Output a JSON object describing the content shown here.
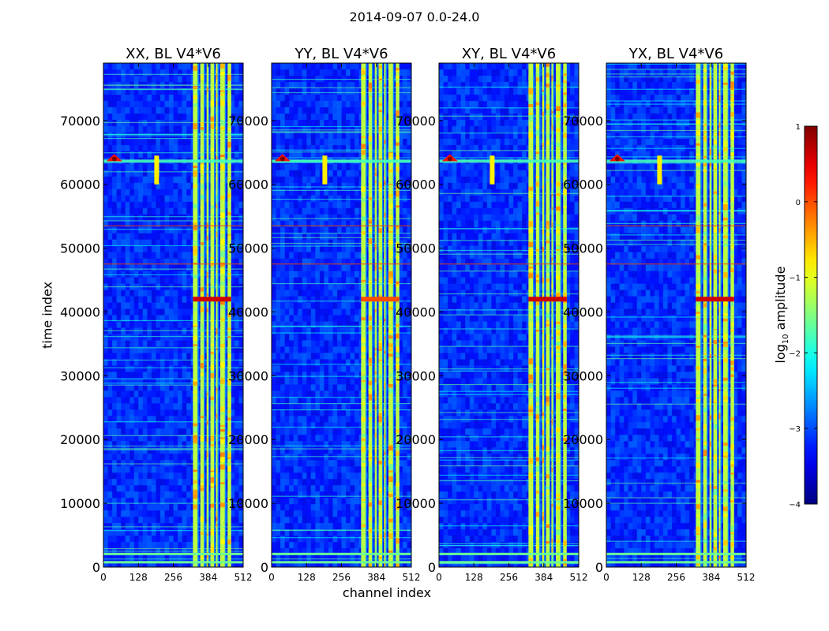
{
  "chart_data": {
    "type": "heatmap",
    "title": "2014-09-07 0.0-24.0",
    "xlabel": "channel index",
    "ylabel": "time index",
    "xlim": [
      0,
      512
    ],
    "ylim": [
      0,
      79000
    ],
    "xticks": [
      "0",
      "128",
      "256",
      "384",
      "512"
    ],
    "xtick_values": [
      0,
      128,
      256,
      384,
      512
    ],
    "yticks": [
      "0",
      "10000",
      "20000",
      "30000",
      "40000",
      "50000",
      "60000",
      "70000"
    ],
    "ytick_values": [
      0,
      10000,
      20000,
      30000,
      40000,
      50000,
      60000,
      70000
    ],
    "colormap": "jet",
    "colorbar": {
      "label_main": "log",
      "label_sub": "10",
      "label_rest": " amplitude",
      "range": [
        -4,
        1
      ],
      "ticks": [
        "1",
        "0",
        "−1",
        "−2",
        "−3",
        "−4"
      ],
      "tick_values": [
        1,
        0,
        -1,
        -2,
        -3,
        -4
      ]
    },
    "panels": [
      {
        "title": "XX, BL V4*V6"
      },
      {
        "title": "YY, BL V4*V6"
      },
      {
        "title": "XY, BL V4*V6"
      },
      {
        "title": "YX, BL V4*V6"
      }
    ],
    "observed_features": {
      "background_level": -3.2,
      "strong_band_channels": [
        [
          328,
          345
        ],
        [
          355,
          368
        ],
        [
          378,
          385
        ],
        [
          392,
          405
        ],
        [
          412,
          418
        ],
        [
          428,
          445
        ],
        [
          455,
          468
        ]
      ],
      "strong_band_level": -1.2,
      "hot_spot": {
        "channel": 40,
        "time": 64000,
        "level": 1
      },
      "narrow_feature": {
        "channel": 195,
        "time_range": [
          60000,
          64500
        ],
        "level": -0.8
      },
      "horizontal_lines_time": [
        47500,
        53500
      ],
      "bright_row_time": 42000
    }
  }
}
